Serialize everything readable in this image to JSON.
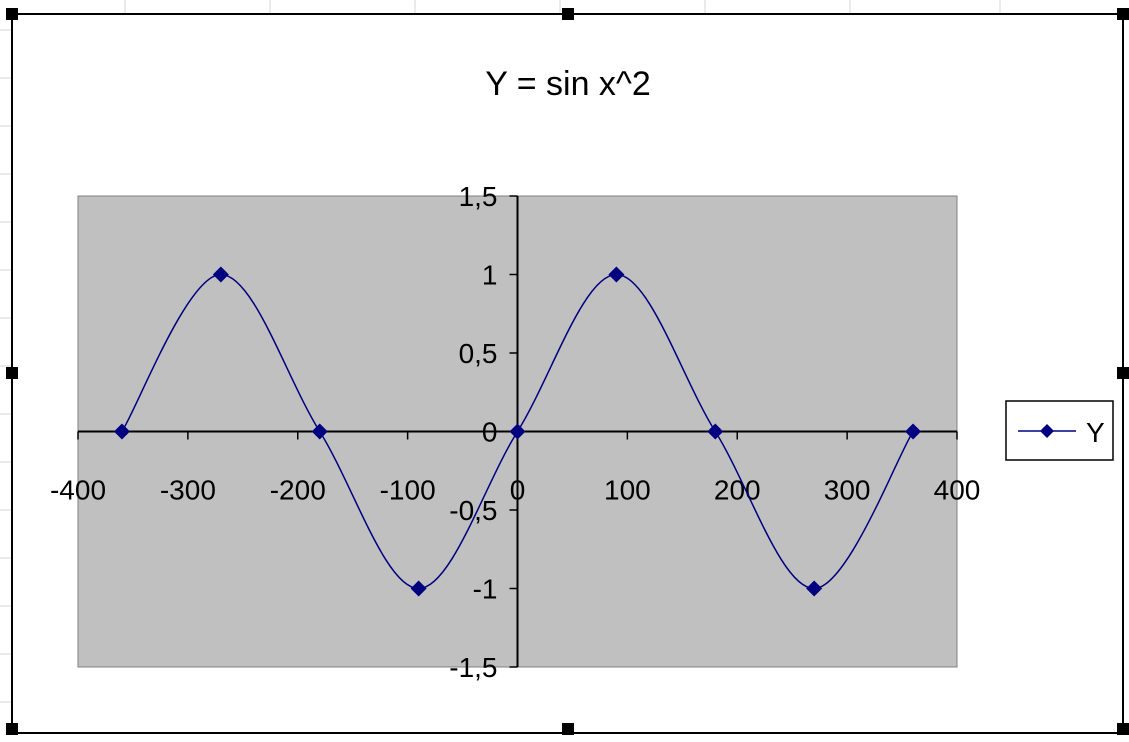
{
  "chart_data": {
    "type": "line",
    "title": "Y = sin x^2",
    "xlabel": "",
    "ylabel": "",
    "xlim": [
      -400,
      400
    ],
    "ylim": [
      -1.5,
      1.5
    ],
    "x_ticks": [
      "-400",
      "-300",
      "-200",
      "-100",
      "0",
      "100",
      "200",
      "300",
      "400"
    ],
    "y_ticks": [
      "-1,5",
      "-1",
      "-0,5",
      "0",
      "0,5",
      "1",
      "1,5"
    ],
    "grid": false,
    "legend_position": "right",
    "series": [
      {
        "name": "Y",
        "color": "#000080",
        "marker": "diamond",
        "smooth": true,
        "x": [
          -360,
          -270,
          -180,
          -90,
          0,
          90,
          180,
          270,
          360
        ],
        "y": [
          0,
          1,
          0,
          -1,
          0,
          1,
          0,
          -1,
          0
        ]
      }
    ],
    "plot_area_color": "#c0c0c0"
  }
}
